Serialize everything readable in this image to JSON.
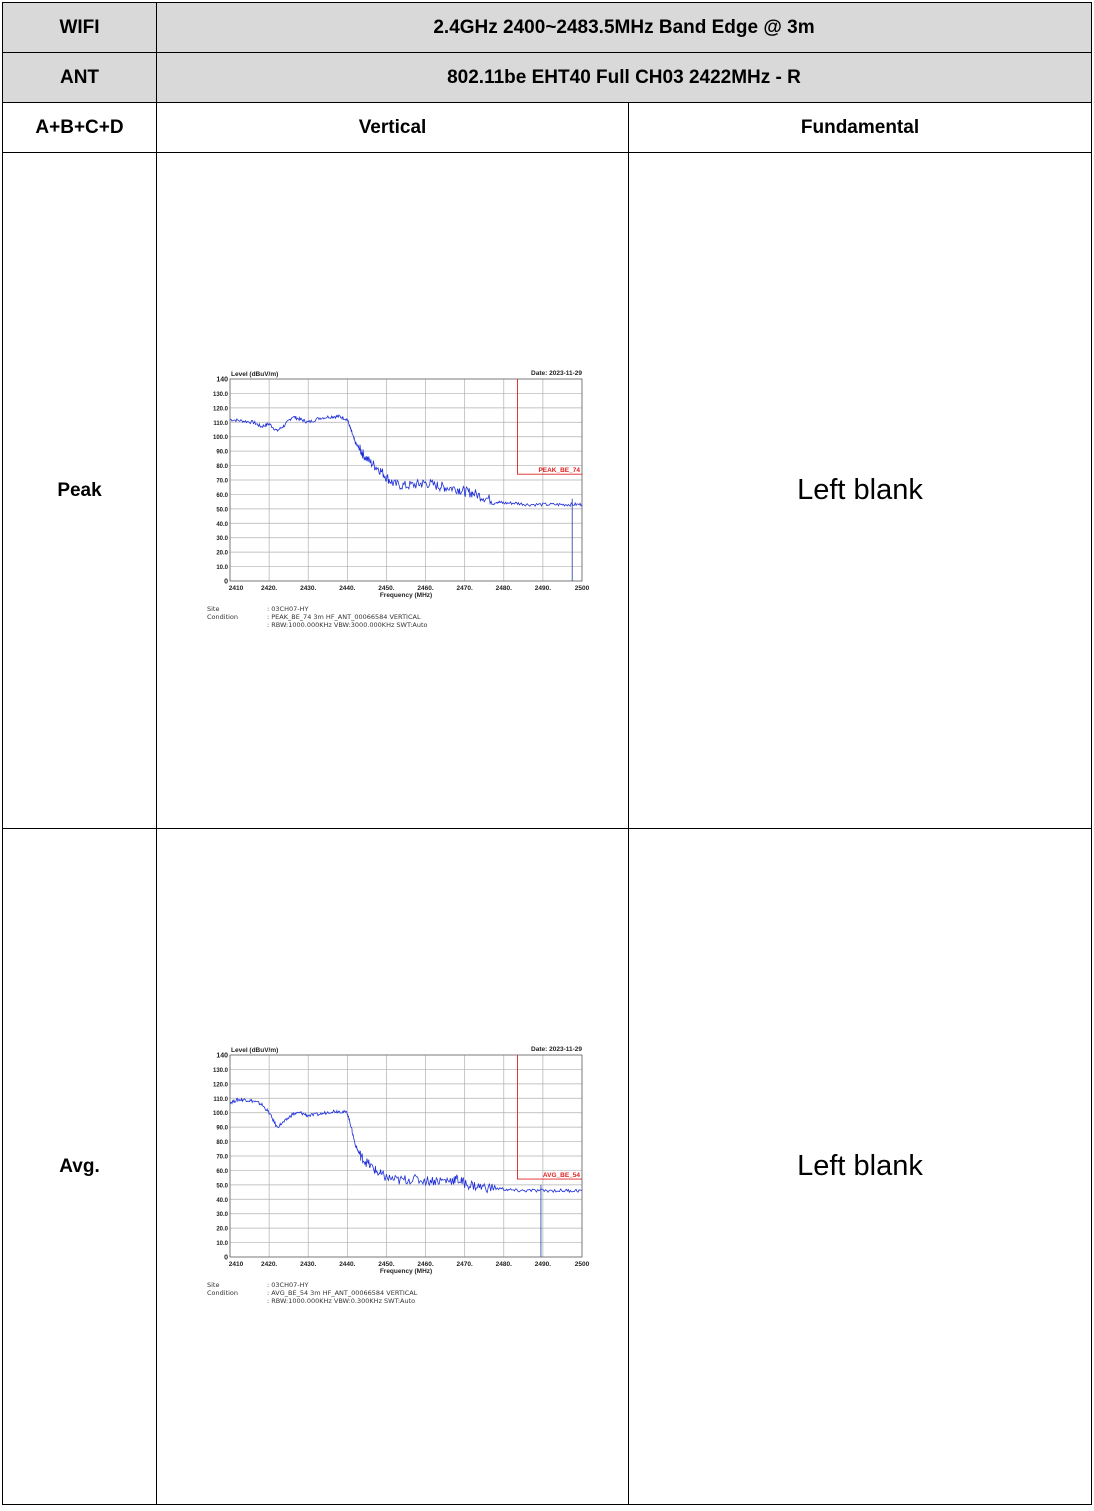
{
  "table": {
    "row1": {
      "label": "WIFI",
      "value": "2.4GHz 2400~2483.5MHz Band Edge @ 3m"
    },
    "row2": {
      "label": "ANT",
      "value": "802.11be EHT40 Full CH03 2422MHz - R"
    },
    "row3": {
      "label": "A+B+C+D",
      "col2": "Vertical",
      "col3": "Fundamental"
    },
    "peak": {
      "label": "Peak",
      "right": "Left blank"
    },
    "avg": {
      "label": "Avg.",
      "right": "Left blank"
    }
  },
  "chart_data": [
    {
      "type": "line",
      "ylabel": "Level (dBuV/m)",
      "xlabel": "Frequency (MHz)",
      "date": "Date: 2023-11-29",
      "xlim": [
        2410,
        2500
      ],
      "ylim": [
        0,
        140
      ],
      "x_ticks": [
        "2410",
        "2420.",
        "2430.",
        "2440.",
        "2450.",
        "2460.",
        "2470.",
        "2480.",
        "2490.",
        "2500"
      ],
      "y_ticks": [
        "0",
        "10.0",
        "20.0",
        "30.0",
        "40.0",
        "50.0",
        "60.0",
        "70.0",
        "80.0",
        "90.0",
        "100.0",
        "110.0",
        "120.0",
        "130.0",
        "140"
      ],
      "limit": {
        "label": "PEAK_BE_74",
        "value": 74,
        "start": 2483.5
      },
      "marker_x": 2497.5,
      "series": [
        {
          "x": [
            2410,
            2413,
            2416,
            2418,
            2420,
            2422,
            2424,
            2426,
            2428,
            2430,
            2433,
            2436,
            2438,
            2440,
            2441,
            2442,
            2443,
            2444,
            2446,
            2448,
            2450,
            2452,
            2455,
            2458,
            2460,
            2463,
            2465,
            2468,
            2470,
            2472,
            2475,
            2478,
            2480,
            2483,
            2486,
            2490,
            2494,
            2497,
            2500
          ],
          "y": [
            112,
            111,
            110,
            107,
            109,
            104,
            108,
            114,
            112,
            110,
            113,
            114,
            114,
            112,
            104,
            96,
            92,
            88,
            82,
            78,
            72,
            67,
            66,
            67,
            68,
            66,
            65,
            64,
            62,
            61,
            58,
            55,
            54,
            54,
            53,
            53,
            53,
            53,
            53
          ]
        }
      ],
      "site": {
        "label": "Site",
        "value": ": 03CH07-HY"
      },
      "condition": {
        "label": "Condition",
        "line1": ": PEAK_BE_74 3m HF_ANT_00066584 VERTICAL",
        "line2": ": RBW:1000.000KHz VBW:3000.000KHz SWT:Auto"
      }
    },
    {
      "type": "line",
      "ylabel": "Level (dBuV/m)",
      "xlabel": "Frequency (MHz)",
      "date": "Date: 2023-11-29",
      "xlim": [
        2410,
        2500
      ],
      "ylim": [
        0,
        140
      ],
      "x_ticks": [
        "2410",
        "2420.",
        "2430.",
        "2440.",
        "2450.",
        "2460.",
        "2470.",
        "2480.",
        "2490.",
        "2500"
      ],
      "y_ticks": [
        "0",
        "10.0",
        "20.0",
        "30.0",
        "40.0",
        "50.0",
        "60.0",
        "70.0",
        "80.0",
        "90.0",
        "100.0",
        "110.0",
        "120.0",
        "130.0",
        "140"
      ],
      "limit": {
        "label": "AVG_BE_54",
        "value": 54,
        "start": 2483.5
      },
      "marker_x": 2489.5,
      "series": [
        {
          "x": [
            2410,
            2412,
            2414,
            2416,
            2418,
            2420,
            2422,
            2424,
            2426,
            2428,
            2430,
            2433,
            2436,
            2438,
            2440,
            2441,
            2442,
            2443,
            2444,
            2446,
            2448,
            2450,
            2453,
            2456,
            2460,
            2463,
            2466,
            2468,
            2470,
            2473,
            2476,
            2480,
            2483,
            2486,
            2490,
            2494,
            2497,
            2500
          ],
          "y": [
            107,
            109,
            109,
            108,
            106,
            100,
            90,
            94,
            99,
            100,
            98,
            99,
            101,
            101,
            100,
            90,
            78,
            72,
            68,
            63,
            58,
            55,
            53,
            54,
            53,
            53,
            53,
            54,
            51,
            49,
            48,
            47,
            46,
            46,
            46,
            46,
            46,
            46
          ]
        }
      ],
      "site": {
        "label": "Site",
        "value": ": 03CH07-HY"
      },
      "condition": {
        "label": "Condition",
        "line1": ": AVG_BE_54 3m HF_ANT_00066584 VERTICAL",
        "line2": ": RBW:1000.000KHz VBW:0.300KHz SWT:Auto"
      }
    }
  ]
}
